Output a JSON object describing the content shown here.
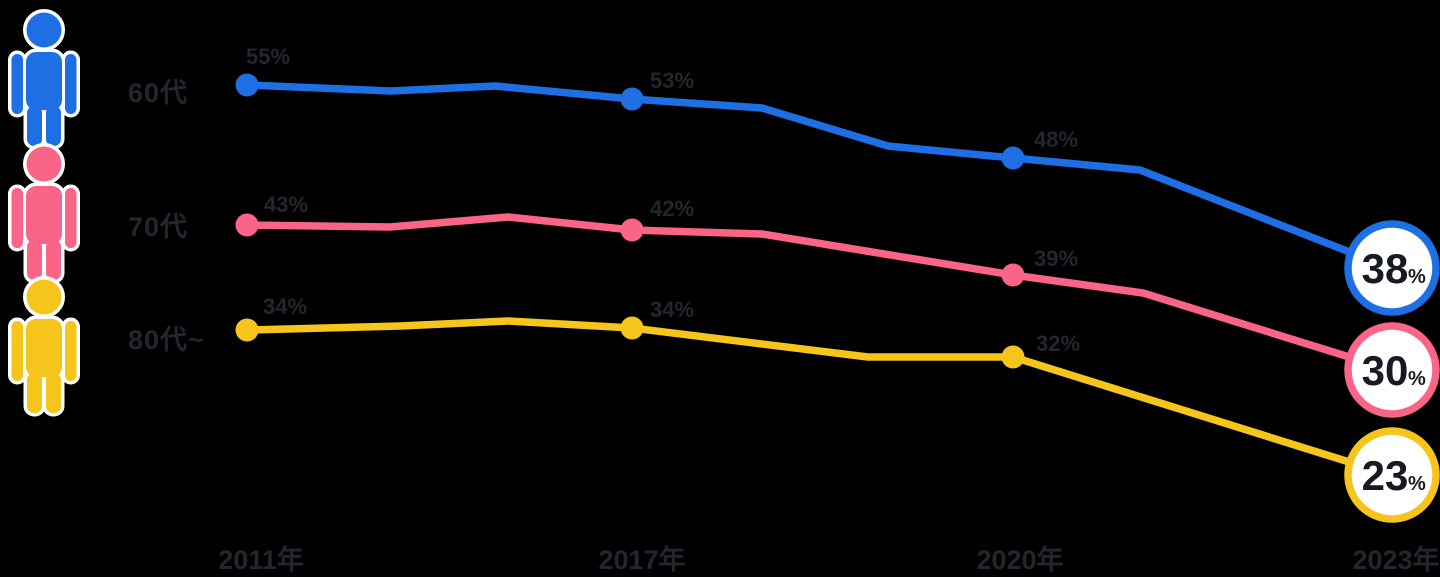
{
  "palette": {
    "background": "#000000",
    "text_dark": "#23262f",
    "badge_fill": "#ffffff"
  },
  "legend": {
    "icon": "person-icon"
  },
  "chart_data": {
    "type": "line",
    "title": "",
    "xlabel": "",
    "ylabel": "",
    "grid": false,
    "legend_position": "left",
    "value_suffix": "%",
    "categories": [
      "2011年",
      "2017年",
      "2020年",
      "2023年"
    ],
    "series": [
      {
        "name": "60代",
        "color": "#1e6ee4",
        "values": [
          55,
          53,
          48,
          38
        ]
      },
      {
        "name": "70代",
        "color": "#fa6486",
        "values": [
          43,
          42,
          39,
          30
        ]
      },
      {
        "name": "80代~",
        "color": "#f6c51c",
        "values": [
          34,
          34,
          32,
          23
        ]
      }
    ],
    "final_badges": [
      "38%",
      "30%",
      "23%"
    ]
  }
}
